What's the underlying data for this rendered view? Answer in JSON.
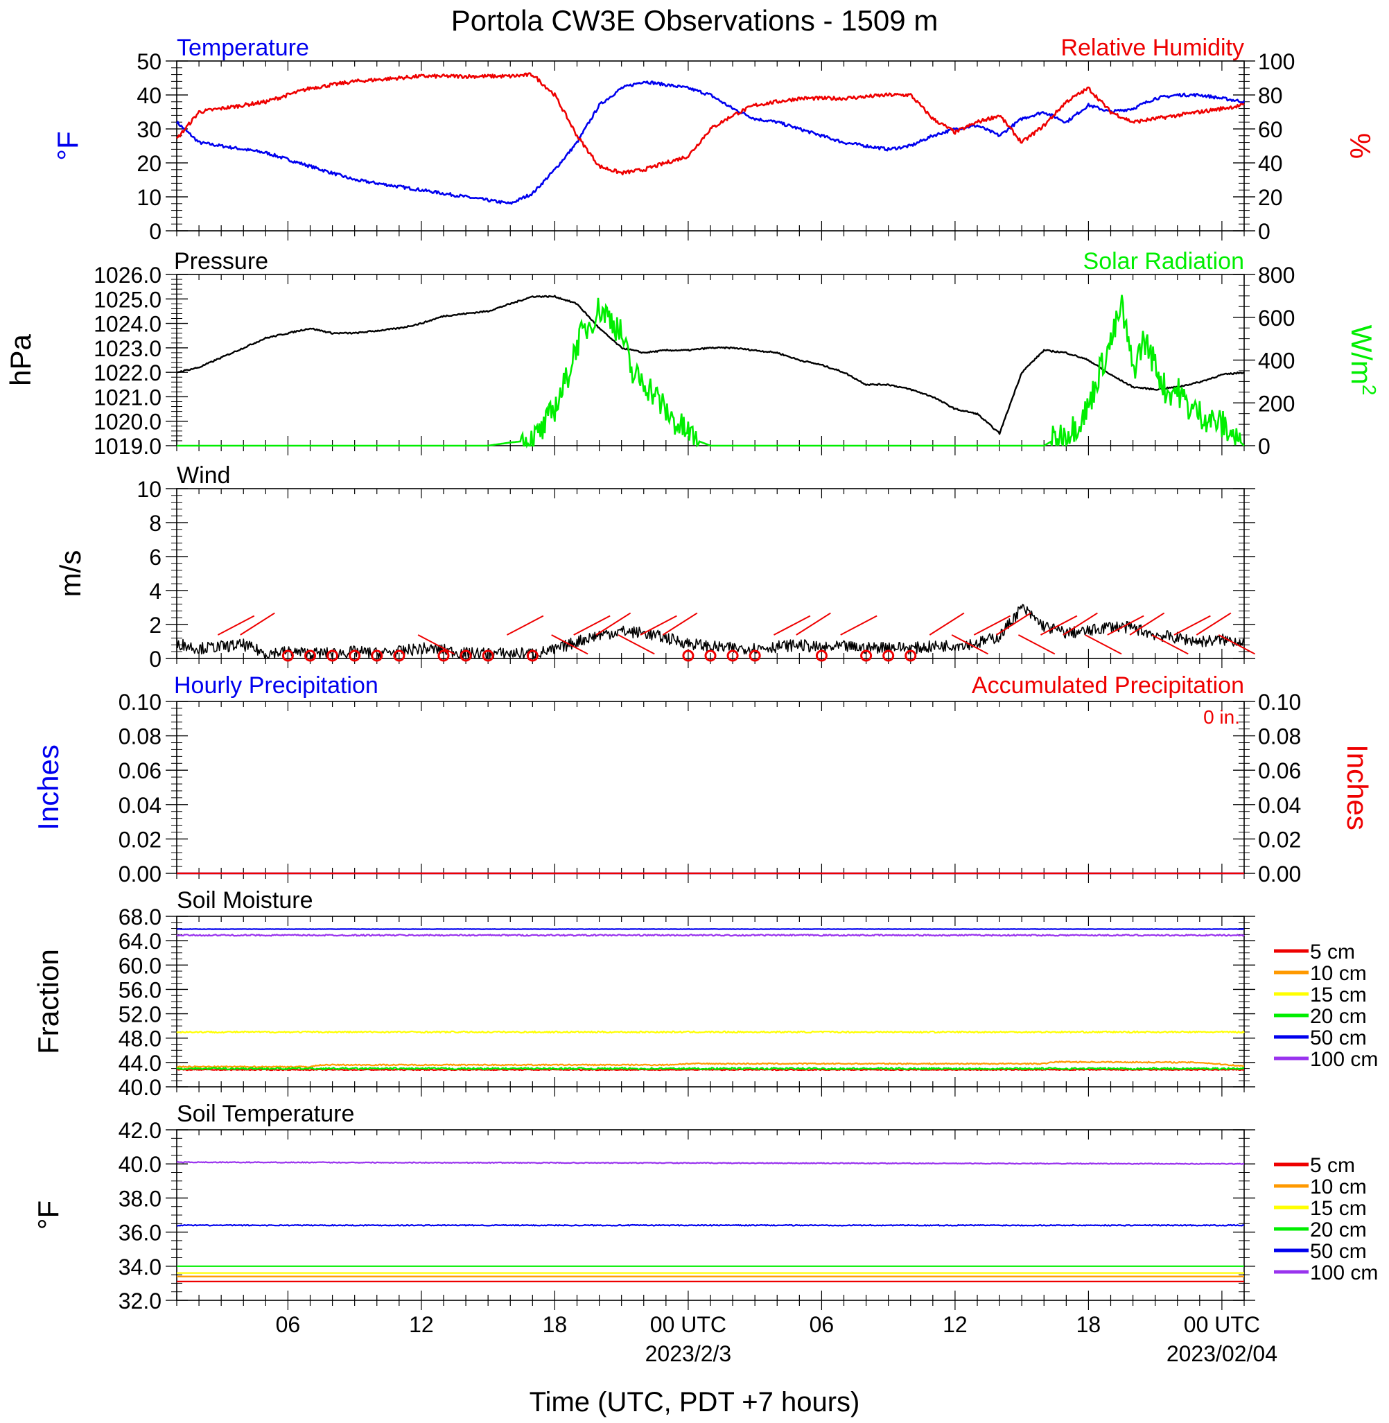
{
  "title": "Portola CW3E Observations - 1509 m",
  "xlabel": "Time (UTC, PDT +7 hours)",
  "x_ticks": [
    {
      "hour": 6,
      "label": "06"
    },
    {
      "hour": 12,
      "label": "12"
    },
    {
      "hour": 18,
      "label": "18"
    },
    {
      "hour": 24,
      "label": "00 UTC"
    },
    {
      "hour": 30,
      "label": "06"
    },
    {
      "hour": 36,
      "label": "12"
    },
    {
      "hour": 42,
      "label": "18"
    },
    {
      "hour": 48,
      "label": "00 UTC"
    }
  ],
  "date_labels": [
    {
      "hour": 24,
      "label": "2023/2/3"
    },
    {
      "hour": 48,
      "label": "2023/02/04"
    }
  ],
  "colors": {
    "blue": "#0000ee",
    "red": "#ee0000",
    "green": "#00ee00",
    "black": "#000000",
    "orange": "#ff9900",
    "yellow": "#ffff00",
    "purple": "#9933ee"
  },
  "chart_data": [
    {
      "type": "line",
      "name": "temperature-rh",
      "left_title": "Temperature",
      "right_title": "Relative Humidity",
      "left_unit": "°F",
      "right_unit": "%",
      "x_range_hours": [
        1,
        49
      ],
      "left_ylim": [
        0,
        50
      ],
      "left_ticks": [
        "0",
        "10",
        "20",
        "30",
        "40",
        "50"
      ],
      "right_ylim": [
        0,
        100
      ],
      "right_ticks": [
        "0",
        "20",
        "40",
        "60",
        "80",
        "100"
      ],
      "series": [
        {
          "name": "Temperature",
          "axis": "left",
          "color": "#0000ee",
          "x": [
            1,
            2,
            3,
            4,
            5,
            6,
            7,
            8,
            9,
            10,
            11,
            12,
            13,
            14,
            15,
            16,
            17,
            18,
            19,
            20,
            21,
            22,
            23,
            24,
            25,
            26,
            27,
            28,
            29,
            30,
            31,
            32,
            33,
            34,
            35,
            36,
            37,
            38,
            39,
            40,
            41,
            42,
            43,
            44,
            45,
            46,
            47,
            48,
            49
          ],
          "y": [
            32,
            26,
            25,
            24,
            23,
            21,
            19,
            17,
            15,
            14,
            13,
            12,
            11,
            10,
            9,
            8,
            11,
            18,
            26,
            37,
            42,
            44,
            43,
            42,
            40,
            36,
            33,
            32,
            30,
            28,
            26,
            25,
            24,
            25,
            28,
            30,
            31,
            28,
            33,
            35,
            32,
            37,
            35,
            36,
            39,
            40,
            40,
            39,
            38
          ]
        },
        {
          "name": "Relative Humidity",
          "axis": "right",
          "color": "#ee0000",
          "x": [
            1,
            2,
            3,
            4,
            5,
            6,
            7,
            8,
            9,
            10,
            11,
            12,
            13,
            14,
            15,
            16,
            17,
            18,
            19,
            20,
            21,
            22,
            23,
            24,
            25,
            26,
            27,
            28,
            29,
            30,
            31,
            32,
            33,
            34,
            35,
            36,
            37,
            38,
            39,
            40,
            41,
            42,
            43,
            44,
            45,
            46,
            47,
            48,
            49
          ],
          "y": [
            54,
            70,
            72,
            74,
            76,
            80,
            84,
            86,
            88,
            89,
            90,
            91,
            91,
            91,
            91,
            91,
            92,
            80,
            56,
            38,
            34,
            36,
            40,
            44,
            60,
            68,
            74,
            76,
            78,
            78,
            78,
            79,
            80,
            80,
            66,
            58,
            64,
            68,
            52,
            62,
            76,
            84,
            70,
            64,
            66,
            68,
            70,
            72,
            74
          ]
        }
      ]
    },
    {
      "type": "line",
      "name": "pressure-solar",
      "left_title": "Pressure",
      "right_title": "Solar Radiation",
      "left_unit": "hPa",
      "right_unit": "W/m",
      "right_unit_sup": "2",
      "x_range_hours": [
        1,
        49
      ],
      "left_ylim": [
        1019.0,
        1026.0
      ],
      "left_ticks": [
        "1019.0",
        "1020.0",
        "1021.0",
        "1022.0",
        "1023.0",
        "1024.0",
        "1025.0",
        "1026.0"
      ],
      "right_ylim": [
        0,
        800
      ],
      "right_ticks": [
        "0",
        "200",
        "400",
        "600",
        "800"
      ],
      "series": [
        {
          "name": "Pressure",
          "axis": "left",
          "color": "#000000",
          "x": [
            1,
            2,
            3,
            4,
            5,
            6,
            7,
            8,
            9,
            10,
            11,
            12,
            13,
            14,
            15,
            16,
            17,
            18,
            19,
            20,
            21,
            22,
            23,
            24,
            25,
            26,
            27,
            28,
            29,
            30,
            31,
            32,
            33,
            34,
            35,
            36,
            37,
            38,
            39,
            40,
            41,
            42,
            43,
            44,
            45,
            46,
            47,
            48,
            49
          ],
          "y": [
            1022.0,
            1022.2,
            1022.6,
            1023.0,
            1023.4,
            1023.6,
            1023.8,
            1023.6,
            1023.6,
            1023.7,
            1023.8,
            1024.0,
            1024.3,
            1024.4,
            1024.5,
            1024.8,
            1025.1,
            1025.1,
            1024.8,
            1023.8,
            1023.0,
            1022.8,
            1022.9,
            1022.9,
            1023.0,
            1023.0,
            1022.9,
            1022.8,
            1022.5,
            1022.3,
            1022.0,
            1021.5,
            1021.5,
            1021.3,
            1021.0,
            1020.5,
            1020.3,
            1019.5,
            1022.0,
            1022.9,
            1022.8,
            1022.5,
            1021.9,
            1021.4,
            1021.3,
            1021.4,
            1021.6,
            1021.9,
            1022.0
          ]
        },
        {
          "name": "Solar Radiation",
          "axis": "right",
          "color": "#00ee00",
          "x": [
            1,
            15,
            16,
            17,
            17.5,
            18,
            18.5,
            19,
            19.5,
            20,
            20.5,
            21,
            21.5,
            22,
            22.5,
            23,
            23.5,
            24,
            24.5,
            25,
            40,
            40.5,
            41,
            41.5,
            42,
            42.5,
            43,
            43.5,
            44,
            44.5,
            45,
            45.5,
            46,
            46.5,
            47,
            47.5,
            48,
            48.5,
            49
          ],
          "y": [
            0,
            0,
            15,
            25,
            80,
            180,
            300,
            480,
            560,
            640,
            600,
            520,
            330,
            300,
            240,
            160,
            100,
            60,
            20,
            0,
            0,
            30,
            60,
            100,
            180,
            350,
            480,
            650,
            350,
            500,
            380,
            250,
            260,
            180,
            150,
            120,
            100,
            50,
            0
          ]
        }
      ]
    },
    {
      "type": "line",
      "name": "wind",
      "title": "Wind",
      "unit": "m/s",
      "x_range_hours": [
        1,
        49
      ],
      "ylim": [
        0,
        10
      ],
      "y_ticks": [
        "0",
        "2",
        "4",
        "6",
        "8",
        "10"
      ],
      "series": [
        {
          "name": "Wind",
          "color": "#000000",
          "x": [
            1,
            2,
            3,
            4,
            5,
            6,
            7,
            8,
            9,
            10,
            11,
            12,
            13,
            14,
            15,
            16,
            17,
            18,
            19,
            20,
            21,
            22,
            23,
            24,
            25,
            26,
            27,
            28,
            29,
            30,
            31,
            32,
            33,
            34,
            35,
            36,
            37,
            38,
            39,
            40,
            41,
            42,
            43,
            44,
            45,
            46,
            47,
            48,
            49
          ],
          "y": [
            0.9,
            0.6,
            0.7,
            0.8,
            0.3,
            0.4,
            0.3,
            0.3,
            0.4,
            0.3,
            0.4,
            0.6,
            0.5,
            0.3,
            0.3,
            0.3,
            0.3,
            0.5,
            1.0,
            1.4,
            1.6,
            1.5,
            1.2,
            0.9,
            0.7,
            0.6,
            0.6,
            0.7,
            0.8,
            0.6,
            0.7,
            0.6,
            0.7,
            0.6,
            0.7,
            0.8,
            0.9,
            1.3,
            3.0,
            1.9,
            1.5,
            1.6,
            1.9,
            1.8,
            1.4,
            1.2,
            1.0,
            1.1,
            1.0
          ]
        }
      ],
      "barb_hours": [
        3,
        4,
        6,
        7,
        8,
        9,
        10,
        11,
        12,
        13,
        14,
        15,
        16,
        17,
        18,
        19,
        20,
        21,
        22,
        23,
        24,
        25,
        26,
        27,
        28,
        29,
        30,
        31,
        32,
        33,
        34,
        35,
        36,
        37,
        38,
        39,
        40,
        41,
        42,
        43,
        44,
        45,
        46,
        47,
        48
      ],
      "barb_calm": [
        5,
        6,
        7,
        8,
        9,
        10,
        11,
        13,
        14,
        15,
        17,
        24,
        25,
        26,
        27,
        30,
        32,
        33,
        34
      ]
    },
    {
      "type": "line",
      "name": "precipitation",
      "left_title": "Hourly Precipitation",
      "right_title": "Accumulated Precipitation",
      "accum_text": "0 in.",
      "left_unit": "Inches",
      "right_unit": "Inches",
      "x_range_hours": [
        1,
        49
      ],
      "ylim": [
        0,
        0.1
      ],
      "y_ticks": [
        "0.00",
        "0.02",
        "0.04",
        "0.06",
        "0.08",
        "0.10"
      ],
      "series": [
        {
          "name": "Hourly Precipitation",
          "color": "#0000ee",
          "x": [
            1,
            49
          ],
          "y": [
            0,
            0
          ]
        },
        {
          "name": "Accumulated Precipitation",
          "color": "#ee0000",
          "x": [
            1,
            49
          ],
          "y": [
            0,
            0
          ]
        }
      ]
    },
    {
      "type": "line",
      "name": "soil-moisture",
      "title": "Soil Moisture",
      "unit": "Fraction",
      "x_range_hours": [
        1,
        49
      ],
      "ylim": [
        40.0,
        68.0
      ],
      "y_ticks": [
        "40.0",
        "44.0",
        "48.0",
        "52.0",
        "56.0",
        "60.0",
        "64.0",
        "68.0"
      ],
      "legend": [
        "5 cm",
        "10 cm",
        "15 cm",
        "20 cm",
        "50 cm",
        "100 cm"
      ],
      "series": [
        {
          "name": "5 cm",
          "color": "#ee0000",
          "x": [
            1,
            49
          ],
          "y": [
            42.8,
            42.8
          ]
        },
        {
          "name": "10 cm",
          "color": "#ff9900",
          "x": [
            1,
            7,
            7.5,
            23,
            24,
            40,
            40.5,
            47,
            49
          ],
          "y": [
            43.3,
            43.3,
            43.6,
            43.6,
            43.8,
            43.8,
            44.1,
            44.0,
            43.4
          ]
        },
        {
          "name": "15 cm",
          "color": "#ffff00",
          "x": [
            1,
            49
          ],
          "y": [
            49.0,
            49.0
          ]
        },
        {
          "name": "20 cm",
          "color": "#00ee00",
          "x": [
            1,
            49
          ],
          "y": [
            43.0,
            43.0
          ]
        },
        {
          "name": "50 cm",
          "color": "#0000ee",
          "x": [
            1,
            49
          ],
          "y": [
            65.9,
            65.9
          ]
        },
        {
          "name": "100 cm",
          "color": "#9933ee",
          "x": [
            1,
            49
          ],
          "y": [
            64.9,
            64.9
          ]
        }
      ]
    },
    {
      "type": "line",
      "name": "soil-temperature",
      "title": "Soil Temperature",
      "unit": "°F",
      "x_range_hours": [
        1,
        49
      ],
      "ylim": [
        32.0,
        42.0
      ],
      "y_ticks": [
        "32.0",
        "34.0",
        "36.0",
        "38.0",
        "40.0",
        "42.0"
      ],
      "legend": [
        "5 cm",
        "10 cm",
        "15 cm",
        "20 cm",
        "50 cm",
        "100 cm"
      ],
      "series": [
        {
          "name": "5 cm",
          "color": "#ee0000",
          "x": [
            1,
            49
          ],
          "y": [
            33.1,
            33.1
          ]
        },
        {
          "name": "10 cm",
          "color": "#ff9900",
          "x": [
            1,
            49
          ],
          "y": [
            33.4,
            33.4
          ]
        },
        {
          "name": "15 cm",
          "color": "#ffff00",
          "x": [
            1,
            49
          ],
          "y": [
            33.6,
            33.6
          ]
        },
        {
          "name": "20 cm",
          "color": "#00ee00",
          "x": [
            1,
            49
          ],
          "y": [
            34.0,
            34.0
          ]
        },
        {
          "name": "50 cm",
          "color": "#0000ee",
          "x": [
            1,
            49
          ],
          "y": [
            36.4,
            36.4
          ]
        },
        {
          "name": "100 cm",
          "color": "#9933ee",
          "x": [
            1,
            49
          ],
          "y": [
            40.1,
            40.0
          ]
        }
      ]
    }
  ]
}
